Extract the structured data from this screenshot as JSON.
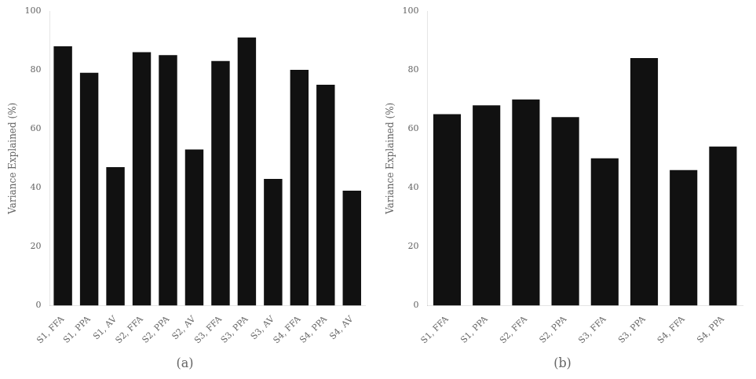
{
  "chart_data": [
    {
      "type": "bar",
      "title": "(a)",
      "categories": [
        "S1, FFA",
        "S1, PPA",
        "S1, AV",
        "S2, FFA",
        "S2, PPA",
        "S2, AV",
        "S3, FFA",
        "S3, PPA",
        "S3, AV",
        "S4, FFA",
        "S4, PPA",
        "S4, AV"
      ],
      "values": [
        88,
        79,
        47,
        86,
        85,
        53,
        83,
        91,
        43,
        80,
        75,
        39
      ],
      "y_label": "Variance Explained (%)",
      "color": "#111111",
      "ylim": [
        0,
        100
      ],
      "yticks": [
        0,
        20,
        40,
        60,
        80,
        100
      ],
      "grid": false
    },
    {
      "type": "bar",
      "title": "(b)",
      "categories": [
        "S1, FFA",
        "S1, PPA",
        "S2, FFA",
        "S2, PPA",
        "S3, FFA",
        "S3, PPA",
        "S4, FFA",
        "S4, PPA"
      ],
      "values": [
        65,
        68,
        70,
        64,
        50,
        84,
        46,
        54
      ],
      "y_label": "Variance Explained (%)",
      "color": "#111111",
      "ylim": [
        0,
        100
      ],
      "yticks": [
        0,
        20,
        40,
        60,
        80,
        100
      ],
      "grid": false
    }
  ]
}
